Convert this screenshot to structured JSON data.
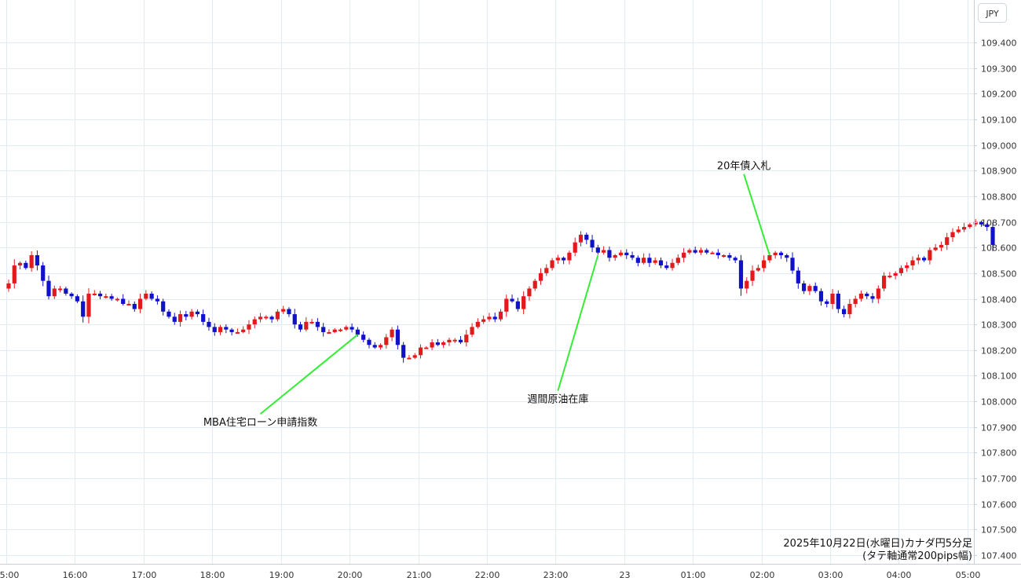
{
  "chart_data": {
    "type": "candlestick",
    "currency_label": "JPY",
    "caption_line1": "2025年10月22日(水曜日)カナダ円5分足",
    "caption_line2": "(タテ軸通常200pips幅)",
    "ylim": [
      107.35,
      109.5
    ],
    "y_ticks": [
      "109.400",
      "109.300",
      "109.200",
      "109.100",
      "109.000",
      "108.900",
      "108.800",
      "108.700",
      "108.600",
      "108.500",
      "108.400",
      "108.300",
      "108.200",
      "108.100",
      "108.000",
      "107.900",
      "107.800",
      "107.700",
      "107.600",
      "107.500",
      "107.400"
    ],
    "x_ticks": [
      {
        "label": "15:00",
        "pos": 0
      },
      {
        "label": "16:00",
        "pos": 12
      },
      {
        "label": "17:00",
        "pos": 24
      },
      {
        "label": "18:00",
        "pos": 36
      },
      {
        "label": "19:00",
        "pos": 48
      },
      {
        "label": "20:00",
        "pos": 60
      },
      {
        "label": "21:00",
        "pos": 72
      },
      {
        "label": "22:00",
        "pos": 84
      },
      {
        "label": "23:00",
        "pos": 96
      },
      {
        "label": "23",
        "pos": 108
      },
      {
        "label": "01:00",
        "pos": 120
      },
      {
        "label": "02:00",
        "pos": 132
      },
      {
        "label": "03:00",
        "pos": 144
      },
      {
        "label": "04:00",
        "pos": 156
      },
      {
        "label": "05:00",
        "pos": 168
      }
    ],
    "colors": {
      "up": "#e31a1c",
      "down": "#1111cc",
      "annotation_line": "#33ee33",
      "grid": "#e3ebf2"
    },
    "annotations": [
      {
        "text": "MBA住宅ローン申請指数",
        "bar": 61,
        "price": 108.26,
        "label_bar": 44,
        "label_price": 107.905
      },
      {
        "text": "週間原油在庫",
        "bar": 103,
        "price": 108.57,
        "label_bar": 96,
        "label_price": 107.995
      },
      {
        "text": "20年債入札",
        "bar": 133,
        "price": 108.57,
        "label_bar": 128.5,
        "label_price": 108.905
      }
    ],
    "closes": [
      108.46,
      108.53,
      108.54,
      108.52,
      108.57,
      108.53,
      108.47,
      108.41,
      108.44,
      108.44,
      108.42,
      108.41,
      108.39,
      108.33,
      108.42,
      108.42,
      108.41,
      108.41,
      108.4,
      108.4,
      108.38,
      108.38,
      108.36,
      108.4,
      108.42,
      108.4,
      108.39,
      108.35,
      108.33,
      108.31,
      108.34,
      108.33,
      108.35,
      108.34,
      108.31,
      108.29,
      108.27,
      108.29,
      108.28,
      108.27,
      108.27,
      108.28,
      108.3,
      108.32,
      108.33,
      108.33,
      108.32,
      108.35,
      108.36,
      108.34,
      108.3,
      108.28,
      108.31,
      108.31,
      108.29,
      108.27,
      108.27,
      108.28,
      108.28,
      108.29,
      108.28,
      108.26,
      108.24,
      108.22,
      108.21,
      108.22,
      108.25,
      108.28,
      108.22,
      108.17,
      108.17,
      108.18,
      108.21,
      108.21,
      108.23,
      108.22,
      108.23,
      108.24,
      108.24,
      108.23,
      108.26,
      108.29,
      108.31,
      108.32,
      108.33,
      108.32,
      108.35,
      108.4,
      108.39,
      108.36,
      108.41,
      108.44,
      108.47,
      108.5,
      108.52,
      108.55,
      108.56,
      108.55,
      108.58,
      108.62,
      108.65,
      108.63,
      108.6,
      108.58,
      108.59,
      108.56,
      108.57,
      108.58,
      108.57,
      108.56,
      108.54,
      108.56,
      108.54,
      108.55,
      108.53,
      108.52,
      108.54,
      108.56,
      108.58,
      108.59,
      108.58,
      108.59,
      108.58,
      108.58,
      108.57,
      108.57,
      108.56,
      108.55,
      108.44,
      108.47,
      108.51,
      108.52,
      108.55,
      108.57,
      108.58,
      108.57,
      108.56,
      108.51,
      108.46,
      108.43,
      108.45,
      108.43,
      108.39,
      108.38,
      108.42,
      108.36,
      108.34,
      108.38,
      108.4,
      108.42,
      108.41,
      108.4,
      108.44,
      108.49,
      108.49,
      108.5,
      108.52,
      108.53,
      108.55,
      108.56,
      108.55,
      108.59,
      108.6,
      108.61,
      108.64,
      108.66,
      108.67,
      108.68,
      108.69,
      108.7,
      108.69,
      108.68,
      108.61
    ]
  }
}
